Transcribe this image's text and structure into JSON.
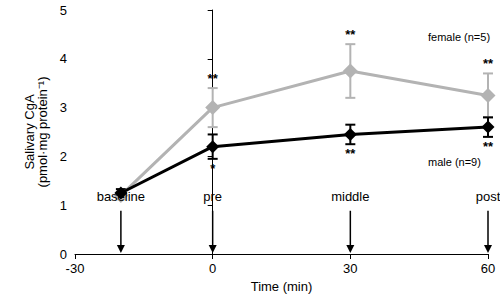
{
  "chart_data": {
    "type": "line",
    "x_label": "Time (min)",
    "y_label": "Salivary CgA\n(pmol·mg protein⁻¹)",
    "x": [
      -20,
      0,
      30,
      60
    ],
    "xlim": [
      -30,
      60
    ],
    "xticks": [
      -30,
      0,
      30,
      60
    ],
    "ylim": [
      0,
      5
    ],
    "yticks": [
      0,
      1,
      2,
      3,
      4,
      5
    ],
    "grid": false,
    "series": [
      {
        "name": "female (n=5)",
        "color": "#b3b3b3",
        "marker": "diamond",
        "values": [
          1.2,
          3.0,
          3.75,
          3.25
        ],
        "errors": [
          0.08,
          0.4,
          0.55,
          0.45
        ],
        "significance": [
          null,
          "**",
          "**",
          "**"
        ]
      },
      {
        "name": "male (n=9)",
        "color": "#000000",
        "marker": "diamond",
        "values": [
          1.25,
          2.2,
          2.45,
          2.6
        ],
        "errors": [
          0.08,
          0.25,
          0.2,
          0.2
        ],
        "significance": [
          null,
          "*",
          "**",
          "**"
        ]
      }
    ],
    "annotations": [
      {
        "x": -20,
        "text": "baseline"
      },
      {
        "x": 0,
        "text": "pre"
      },
      {
        "x": 30,
        "text": "middle"
      },
      {
        "x": 60,
        "text": "post"
      }
    ]
  }
}
